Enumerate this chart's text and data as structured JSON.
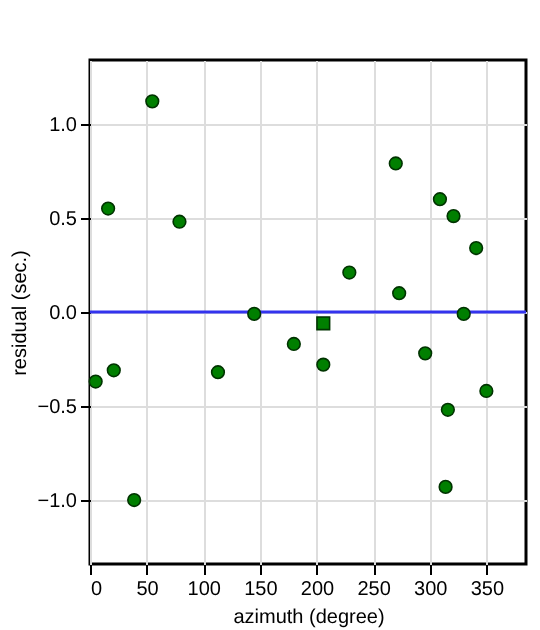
{
  "chart_data": {
    "type": "scatter",
    "xlabel": "azimuth (degree)",
    "ylabel": "residual (sec.)",
    "xlim": [
      0,
      385
    ],
    "xticks": [
      0,
      50,
      100,
      150,
      200,
      250,
      300,
      350
    ],
    "ylim": [
      -1.34,
      1.34
    ],
    "yticks": [
      {
        "value": -1,
        "label": "−1.0"
      },
      {
        "value": -0.5,
        "label": "−0.5"
      },
      {
        "value": 0,
        "label": "0.0"
      },
      {
        "value": 0.5,
        "label": "0.5"
      },
      {
        "value": 1,
        "label": "1.0"
      }
    ],
    "grid": true,
    "marker": "circle",
    "series": [
      {
        "color": "#007f00",
        "x": [
          5,
          21,
          16,
          39,
          55,
          79,
          113,
          145,
          180,
          206,
          229,
          270,
          273,
          296,
          309,
          321,
          316,
          314,
          330,
          341,
          350
        ],
        "values": [
          -0.37,
          -0.31,
          0.55,
          -1.0,
          1.12,
          0.48,
          -0.32,
          -0.01,
          -0.17,
          -0.28,
          0.21,
          0.79,
          0.1,
          -0.22,
          0.6,
          0.51,
          -0.52,
          -0.93,
          -0.01,
          0.34,
          -0.42
        ]
      },
      {
        "color": "#007f00",
        "marker": "square",
        "x": [
          206
        ],
        "values": [
          -0.06
        ]
      }
    ],
    "ref_lines": [
      {
        "axis": "y",
        "value": 0,
        "color": "#3333ee"
      }
    ]
  }
}
